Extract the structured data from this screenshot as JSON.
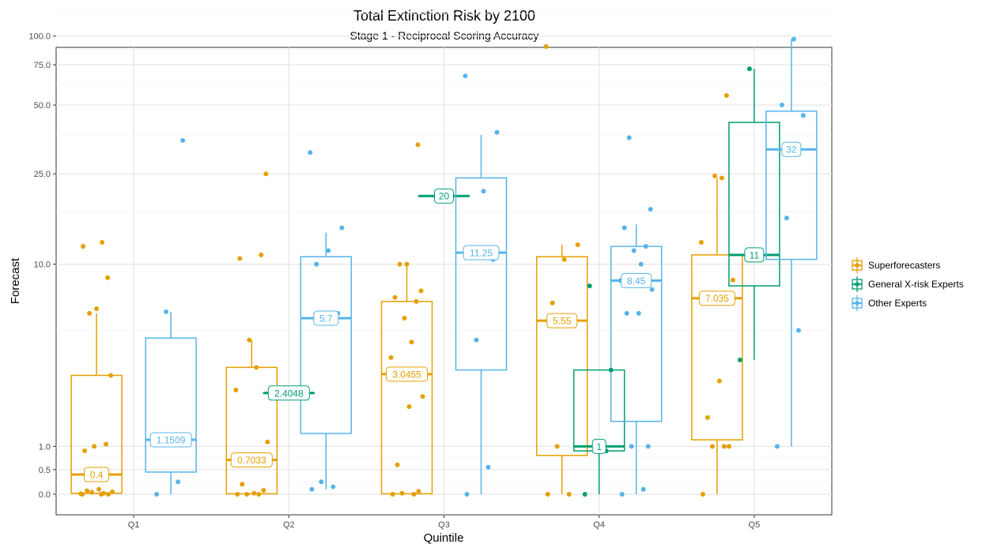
{
  "chart_data": {
    "type": "box",
    "title": "Total Extinction Risk by 2100",
    "subtitle": "Stage 1 - Reciprocal Scoring Accuracy",
    "xlabel": "Quintile",
    "ylabel": "Forecast",
    "y_scale": "pseudo-log",
    "ylim": [
      -0.1,
      150
    ],
    "y_ticks": [
      0.0,
      0.5,
      1.0,
      10.0,
      25.0,
      50.0,
      75.0,
      100.0
    ],
    "y_tick_labels": [
      "0.0",
      "0.5",
      "1.0",
      "10.0",
      "25.0",
      "50.0",
      "75.0",
      "100.0"
    ],
    "grid": true,
    "legend_position": "right",
    "categories": [
      "Q1",
      "Q2",
      "Q3",
      "Q4",
      "Q5"
    ],
    "series": [
      {
        "name": "Superforecasters",
        "color": "#E69F00",
        "boxes": [
          {
            "category": "Q1",
            "whisker_low": 0.0,
            "q1": 0.02,
            "median": 0.4,
            "q3": 3.0,
            "whisker_high": 6.0,
            "median_label": "0.4",
            "points": [
              0,
              0.02,
              0.04,
              0,
              0.07,
              0.1,
              0.05,
              0.01,
              0,
              1.0,
              1.05,
              0.9,
              3.0,
              6.0,
              6.3,
              8.7,
              12,
              12.5
            ]
          },
          {
            "category": "Q2",
            "whisker_low": 0.0,
            "q1": 0.01,
            "median": 0.7033,
            "q3": 3.3,
            "whisker_high": 4.5,
            "median_label": "0.7033",
            "points": [
              0,
              0,
              0,
              0.08,
              0.2,
              0.02,
              1.1,
              2.5,
              3.3,
              4.5,
              11,
              10.6,
              25
            ]
          },
          {
            "category": "Q3",
            "whisker_low": 0.0,
            "q1": 0.01,
            "median": 3.0455,
            "q3": 6.8,
            "whisker_high": 10.0,
            "median_label": "3.0455",
            "points": [
              0,
              0,
              0.02,
              0.06,
              0.6,
              2.0,
              2.3,
              3.7,
              4.4,
              5.7,
              6.8,
              7.1,
              7.6,
              10,
              10,
              33.5
            ]
          },
          {
            "category": "Q4",
            "whisker_low": 0.0,
            "q1": 0.8,
            "median": 5.55,
            "q3": 10.8,
            "whisker_high": 12.2,
            "median_label": "5.55",
            "points": [
              0,
              0,
              1.0,
              5.8,
              6.7,
              10.5,
              12.2,
              90
            ]
          },
          {
            "category": "Q5",
            "whisker_low": 0.0,
            "q1": 1.15,
            "median": 7.035,
            "q3": 11.0,
            "whisker_high": 24.0,
            "median_label": "7.035",
            "points": [
              0,
              1.0,
              1.0,
              1.0,
              1.7,
              2.8,
              8.5,
              12.5,
              24,
              24.5,
              55
            ]
          }
        ]
      },
      {
        "name": "General X-risk Experts",
        "color": "#009E73",
        "boxes": [
          {
            "category": "Q2",
            "whisker_low": 2.4048,
            "q1": 2.4048,
            "median": 2.4048,
            "q3": 2.4048,
            "whisker_high": 2.4048,
            "median_label": "2.4048",
            "points": []
          },
          {
            "category": "Q3",
            "whisker_low": 20.0,
            "q1": 20.0,
            "median": 20.0,
            "q3": 20.0,
            "whisker_high": 20.0,
            "median_label": "20",
            "points": []
          },
          {
            "category": "Q4",
            "whisker_low": 0.0,
            "q1": 0.9,
            "median": 1.0,
            "q3": 3.2,
            "whisker_high": 3.2,
            "median_label": "1",
            "points": [
              0,
              0.9,
              1.0,
              3.2,
              8
            ]
          },
          {
            "category": "Q5",
            "whisker_low": 3.6,
            "q1": 8.0,
            "median": 11.0,
            "q3": 42.0,
            "whisker_high": 72.0,
            "median_label": "11",
            "points": [
              3.6,
              11,
              72
            ]
          }
        ]
      },
      {
        "name": "Other Experts",
        "color": "#56B4E9",
        "boxes": [
          {
            "category": "Q1",
            "whisker_low": 0.0,
            "q1": 0.45,
            "median": 1.1509,
            "q3": 4.6,
            "whisker_high": 6.1,
            "median_label": "1.1509",
            "points": [
              0,
              0.25,
              6.1,
              35
            ]
          },
          {
            "category": "Q2",
            "whisker_low": 0.1,
            "q1": 1.3,
            "median": 5.7,
            "q3": 10.8,
            "whisker_high": 13.8,
            "median_label": "5.7",
            "points": [
              0.1,
              0.15,
              0.25,
              6.0,
              10,
              11.5,
              14.5,
              31
            ]
          },
          {
            "category": "Q3",
            "whisker_low": 0.0,
            "q1": 3.2,
            "median": 11.25,
            "q3": 24.0,
            "whisker_high": 37.0,
            "median_label": "11.25",
            "points": [
              0,
              0.55,
              4.5,
              10.5,
              11.5,
              21,
              38,
              67
            ]
          },
          {
            "category": "Q4",
            "whisker_low": 0.0,
            "q1": 1.6,
            "median": 8.45,
            "q3": 12.0,
            "whisker_high": 15.0,
            "median_label": "8.45",
            "points": [
              0,
              0.1,
              1.0,
              1.0,
              6.0,
              6.0,
              7.7,
              8.45,
              10,
              11.5,
              12,
              14.5,
              17.5,
              36
            ]
          },
          {
            "category": "Q5",
            "whisker_low": 1.0,
            "q1": 10.5,
            "median": 32.0,
            "q3": 47.0,
            "whisker_high": 97.0,
            "median_label": "32",
            "points": [
              1.0,
              5.0,
              16,
              45,
              50,
              97
            ]
          }
        ]
      }
    ]
  }
}
